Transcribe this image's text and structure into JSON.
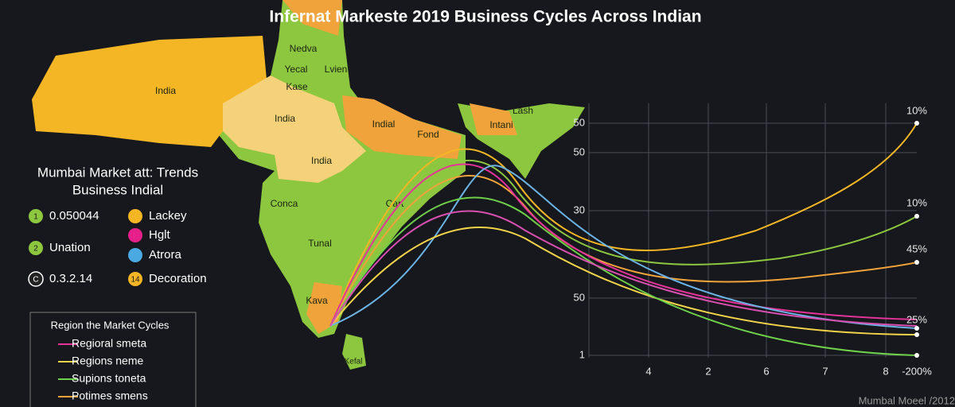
{
  "header": {
    "title": "Infernat Markeste 2019 Business Cycles Across Indian"
  },
  "map": {
    "labels": [
      "India",
      "Nedva",
      "Yecal",
      "Lvien",
      "Kase",
      "India",
      "India",
      "Indial",
      "Fond",
      "Lash",
      "Intani",
      "Conca",
      "Cart",
      "Tunal",
      "Kava",
      "Kefal"
    ]
  },
  "legend": {
    "title_lines": [
      "Mumbai Market att: Trends",
      "Business Indial"
    ],
    "items": [
      {
        "badge": "1",
        "label": "0.050044"
      },
      {
        "badge": "2",
        "label": "Unation"
      },
      {
        "badge": "C",
        "label": "0.3.2.14"
      },
      {
        "badge": "",
        "label": "Lackey"
      },
      {
        "badge": "",
        "label": "Hglt"
      },
      {
        "badge": "",
        "label": "Atrora"
      },
      {
        "badge": "14",
        "label": "Decoration"
      }
    ]
  },
  "key": {
    "title": "Region the Market Cycles",
    "entries": [
      "Regioral smeta",
      "Regions neme",
      "Supions toneta",
      "Potimes smens"
    ]
  },
  "axis": {
    "y_labels": [
      "50",
      "50",
      "30",
      "50",
      "1"
    ],
    "x_labels": [
      "4",
      "2",
      "6",
      "7",
      "8",
      "-200%"
    ]
  },
  "end_labels": [
    "10%",
    "10%",
    "45%",
    "25%"
  ],
  "footer": "Mumbal Moeel /2012"
}
